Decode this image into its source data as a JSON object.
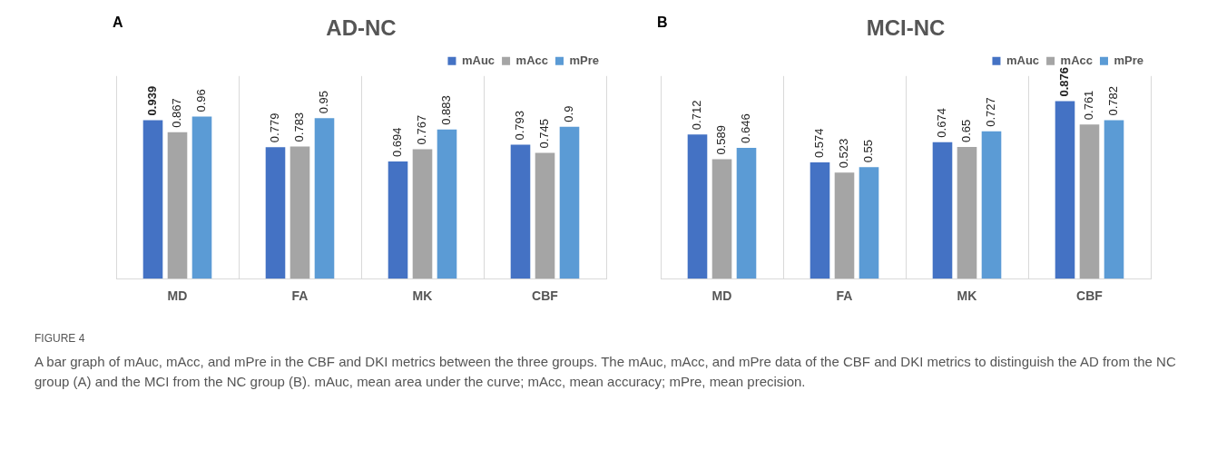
{
  "chart_data": [
    {
      "type": "bar",
      "title": "AD-NC",
      "categories": [
        "MD",
        "FA",
        "MK",
        "CBF"
      ],
      "series": [
        {
          "name": "mAuc",
          "color": "#4472c4",
          "values": [
            0.939,
            0.779,
            0.694,
            0.793
          ]
        },
        {
          "name": "mAcc",
          "color": "#a5a5a5",
          "values": [
            0.867,
            0.783,
            0.767,
            0.745
          ]
        },
        {
          "name": "mPre",
          "color": "#5b9bd5",
          "values": [
            0.96,
            0.95,
            0.883,
            0.9
          ]
        }
      ],
      "data_labels": true,
      "grid": "x",
      "legend": "top right",
      "tick_labels": "x",
      "annotations": [
        "A",
        "FIGURE 4",
        "A bar graph of mAuc, mAcc, and mPre in the CBF and DKI metrics between the three groups. The mAuc, mAcc, and mPre data of the CBF and DKI metrics to distinguish the AD from the NC group (A) and the MCI from the NC group (B). mAuc, mean area under the curve; mAcc, mean accuracy; mPre, mean precision."
      ]
    },
    {
      "type": "bar",
      "title": "MCI-NC",
      "categories": [
        "MD",
        "FA",
        "MK",
        "CBF"
      ],
      "series": [
        {
          "name": "mAuc",
          "color": "#4472c4",
          "values": [
            0.712,
            0.574,
            0.674,
            0.876
          ]
        },
        {
          "name": "mAcc",
          "color": "#a5a5a5",
          "values": [
            0.589,
            0.523,
            0.65,
            0.761
          ]
        },
        {
          "name": "mPre",
          "color": "#5b9bd5",
          "values": [
            0.646,
            0.55,
            0.727,
            0.782
          ]
        }
      ],
      "data_labels": true,
      "grid": "x",
      "legend": "top right",
      "tick_labels": "x",
      "annotations": [
        "B"
      ]
    }
  ]
}
